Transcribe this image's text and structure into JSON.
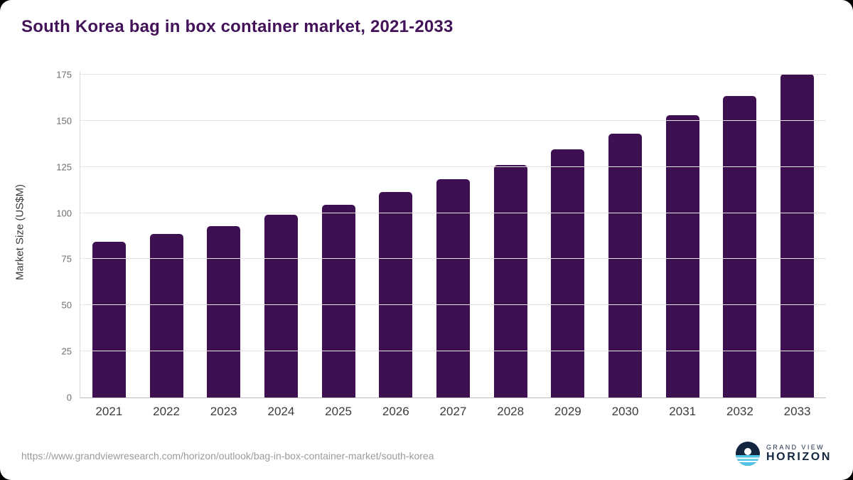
{
  "chart_data": {
    "type": "bar",
    "title": "South Korea bag in box container market, 2021-2033",
    "categories": [
      "2021",
      "2022",
      "2023",
      "2024",
      "2025",
      "2026",
      "2027",
      "2028",
      "2029",
      "2030",
      "2031",
      "2032",
      "2033"
    ],
    "values": [
      84.5,
      88.5,
      93,
      99,
      104.5,
      111.5,
      118.5,
      126,
      134.5,
      143,
      153,
      163.5,
      175.5
    ],
    "xlabel": "",
    "ylabel": "Market Size (US$M)",
    "ylim": [
      0,
      175
    ],
    "yticks": [
      0,
      25,
      50,
      75,
      100,
      125,
      150,
      175
    ],
    "legend": "none",
    "grid": "horizontal",
    "bar_color": "#3E1052"
  },
  "colors": {
    "title": "#431259",
    "gridline": "#e4e4e4",
    "logo_navy": "#13263f",
    "logo_blue": "#4fc4e8"
  },
  "footer": {
    "source_url": "https://www.grandviewresearch.com/horizon/outlook/bag-in-box-container-market/south-korea",
    "logo_line1": "GRAND VIEW",
    "logo_line2": "HORIZON"
  }
}
